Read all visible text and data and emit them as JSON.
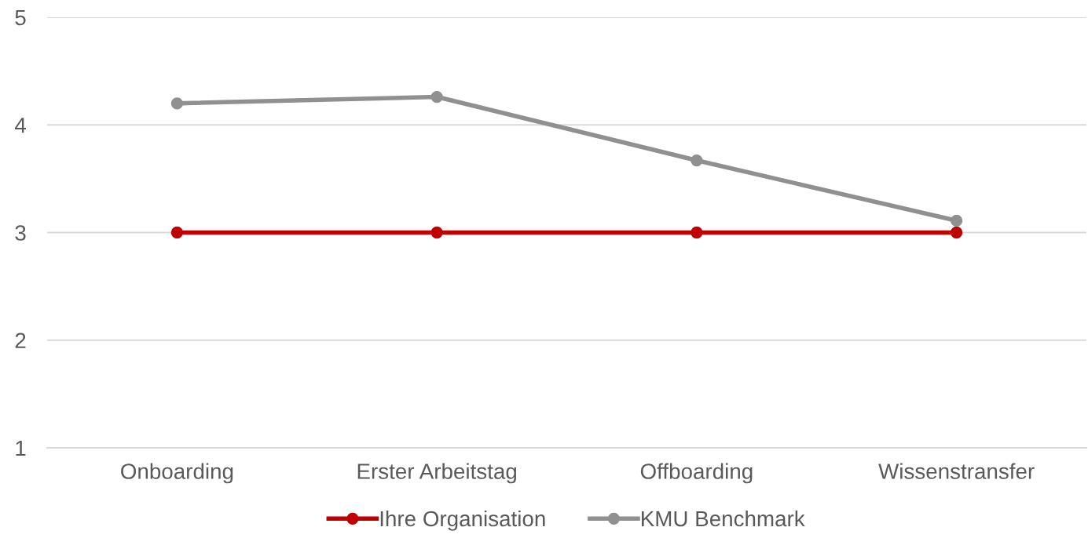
{
  "chart_data": {
    "type": "line",
    "categories": [
      "Onboarding",
      "Erster Arbeitstag",
      "Offboarding",
      "Wissenstransfer"
    ],
    "series": [
      {
        "name": "Ihre Organisation",
        "color": "#c00000",
        "values": [
          3,
          3,
          3,
          3
        ]
      },
      {
        "name": "KMU Benchmark",
        "color": "#909090",
        "values": [
          4.2,
          4.26,
          3.67,
          3.11
        ]
      }
    ],
    "ylim": [
      1,
      5
    ],
    "yticks": [
      1,
      2,
      3,
      4,
      5
    ],
    "grid": "y",
    "legend": "bottom",
    "marker": "circle",
    "line_style": "solid"
  }
}
